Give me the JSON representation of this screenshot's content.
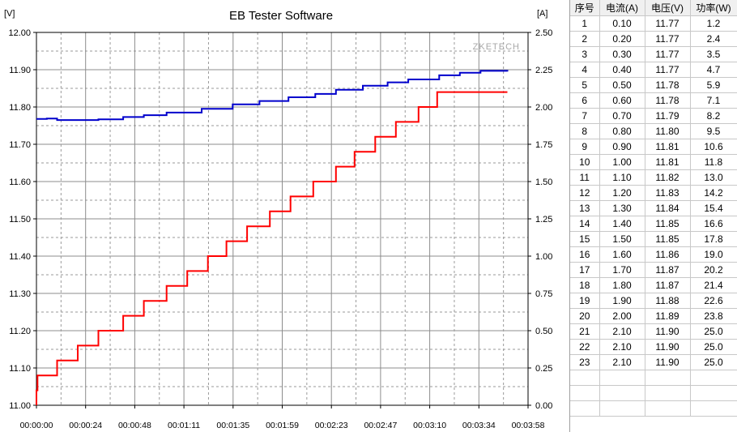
{
  "chart_data": {
    "type": "line",
    "title": "EB Tester Software",
    "watermark": "ZKETECH",
    "left_axis": {
      "unit_label": "[V]",
      "ylim": [
        11.0,
        12.0
      ],
      "ticks": [
        "11.00",
        "11.10",
        "11.20",
        "11.30",
        "11.40",
        "11.50",
        "11.60",
        "11.70",
        "11.80",
        "11.90",
        "12.00"
      ]
    },
    "right_axis": {
      "unit_label": "[A]",
      "ylim": [
        0.0,
        2.5
      ],
      "ticks": [
        "0.00",
        "0.25",
        "0.50",
        "0.75",
        "1.00",
        "1.25",
        "1.50",
        "1.75",
        "2.00",
        "2.25",
        "2.50"
      ]
    },
    "x_axis": {
      "xlim_seconds": [
        0,
        238
      ],
      "ticks": [
        "00:00:00",
        "00:00:24",
        "00:00:48",
        "00:01:11",
        "00:01:35",
        "00:01:59",
        "00:02:23",
        "00:02:47",
        "00:03:10",
        "00:03:34",
        "00:03:58"
      ]
    },
    "grid": true,
    "series": [
      {
        "axis": "left",
        "color": "#0000cc",
        "points": [
          [
            0,
            11.768
          ],
          [
            5,
            11.769
          ],
          [
            10,
            11.765
          ],
          [
            30,
            11.767
          ],
          [
            42,
            11.773
          ],
          [
            52,
            11.778
          ],
          [
            63,
            11.785
          ],
          [
            80,
            11.795
          ],
          [
            95,
            11.807
          ],
          [
            108,
            11.816
          ],
          [
            122,
            11.826
          ],
          [
            135,
            11.835
          ],
          [
            145,
            11.846
          ],
          [
            158,
            11.857
          ],
          [
            170,
            11.866
          ],
          [
            180,
            11.874
          ],
          [
            195,
            11.885
          ],
          [
            205,
            11.892
          ],
          [
            215,
            11.897
          ],
          [
            228,
            11.895
          ]
        ]
      },
      {
        "axis": "right",
        "color": "#ff0000",
        "points": [
          [
            0,
            0.0
          ],
          [
            0.5,
            0.1
          ],
          [
            10,
            0.2
          ],
          [
            20,
            0.3
          ],
          [
            30,
            0.4
          ],
          [
            42,
            0.5
          ],
          [
            52,
            0.6
          ],
          [
            63,
            0.7
          ],
          [
            73,
            0.8
          ],
          [
            83,
            0.9
          ],
          [
            92,
            1.0
          ],
          [
            102,
            1.1
          ],
          [
            113,
            1.2
          ],
          [
            123,
            1.3
          ],
          [
            134,
            1.4
          ],
          [
            145,
            1.5
          ],
          [
            154,
            1.6
          ],
          [
            164,
            1.7
          ],
          [
            174,
            1.8
          ],
          [
            185,
            1.9
          ],
          [
            194,
            2.0
          ],
          [
            203,
            2.1
          ],
          [
            228,
            2.1
          ]
        ]
      }
    ]
  },
  "table": {
    "headers": [
      "序号",
      "电流(A)",
      "电压(V)",
      "功率(W)"
    ],
    "rows": [
      [
        "1",
        "0.10",
        "11.77",
        "1.2"
      ],
      [
        "2",
        "0.20",
        "11.77",
        "2.4"
      ],
      [
        "3",
        "0.30",
        "11.77",
        "3.5"
      ],
      [
        "4",
        "0.40",
        "11.77",
        "4.7"
      ],
      [
        "5",
        "0.50",
        "11.78",
        "5.9"
      ],
      [
        "6",
        "0.60",
        "11.78",
        "7.1"
      ],
      [
        "7",
        "0.70",
        "11.79",
        "8.2"
      ],
      [
        "8",
        "0.80",
        "11.80",
        "9.5"
      ],
      [
        "9",
        "0.90",
        "11.81",
        "10.6"
      ],
      [
        "10",
        "1.00",
        "11.81",
        "11.8"
      ],
      [
        "11",
        "1.10",
        "11.82",
        "13.0"
      ],
      [
        "12",
        "1.20",
        "11.83",
        "14.2"
      ],
      [
        "13",
        "1.30",
        "11.84",
        "15.4"
      ],
      [
        "14",
        "1.40",
        "11.85",
        "16.6"
      ],
      [
        "15",
        "1.50",
        "11.85",
        "17.8"
      ],
      [
        "16",
        "1.60",
        "11.86",
        "19.0"
      ],
      [
        "17",
        "1.70",
        "11.87",
        "20.2"
      ],
      [
        "18",
        "1.80",
        "11.87",
        "21.4"
      ],
      [
        "19",
        "1.90",
        "11.88",
        "22.6"
      ],
      [
        "20",
        "2.00",
        "11.89",
        "23.8"
      ],
      [
        "21",
        "2.10",
        "11.90",
        "25.0"
      ],
      [
        "22",
        "2.10",
        "11.90",
        "25.0"
      ],
      [
        "23",
        "2.10",
        "11.90",
        "25.0"
      ]
    ],
    "empty_rows": 3
  }
}
